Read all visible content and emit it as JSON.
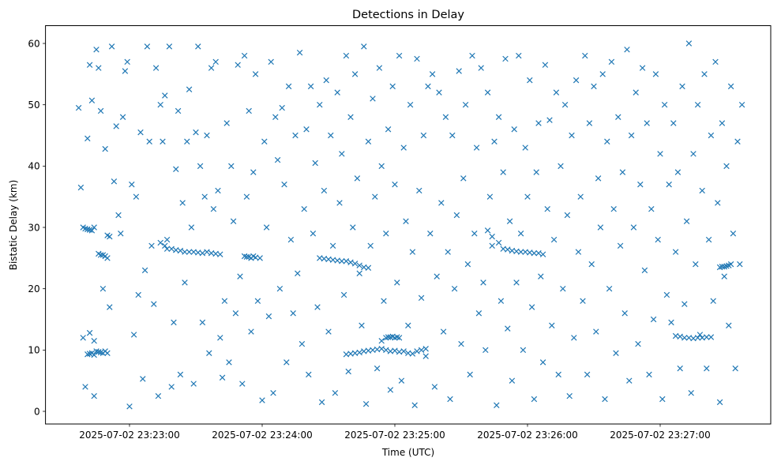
{
  "chart_data": {
    "type": "scatter",
    "title": "Detections in Delay",
    "xlabel": "Time (UTC)",
    "ylabel": "Bistatic Delay (km)",
    "x_unit": "seconds after 2025-07-02 23:22:00",
    "xlim": [
      22,
      350
    ],
    "ylim": [
      -2.06,
      62.9
    ],
    "xticks": [
      {
        "value": 60,
        "label": "2025-07-02 23:23:00"
      },
      {
        "value": 120,
        "label": "2025-07-02 23:24:00"
      },
      {
        "value": 180,
        "label": "2025-07-02 23:25:00"
      },
      {
        "value": 240,
        "label": "2025-07-02 23:26:00"
      },
      {
        "value": 300,
        "label": "2025-07-02 23:27:00"
      }
    ],
    "yticks": [
      {
        "value": 0,
        "label": "0"
      },
      {
        "value": 10,
        "label": "10"
      },
      {
        "value": 20,
        "label": "20"
      },
      {
        "value": 30,
        "label": "30"
      },
      {
        "value": 40,
        "label": "40"
      },
      {
        "value": 50,
        "label": "50"
      },
      {
        "value": 60,
        "label": "60"
      }
    ],
    "grid": false,
    "marker": "x",
    "color": "#1f77b4",
    "points": [
      [
        37,
        49.5
      ],
      [
        38,
        36.5
      ],
      [
        39,
        12
      ],
      [
        40,
        4
      ],
      [
        41,
        44.5
      ],
      [
        42,
        56.5
      ],
      [
        43,
        50.7
      ],
      [
        44,
        2.5
      ],
      [
        45,
        59
      ],
      [
        46,
        56
      ],
      [
        47,
        49
      ],
      [
        48,
        20
      ],
      [
        49,
        42.8
      ],
      [
        50,
        9.5
      ],
      [
        51,
        17
      ],
      [
        52,
        59.5
      ],
      [
        53,
        37.5
      ],
      [
        54,
        46.5
      ],
      [
        55,
        32
      ],
      [
        56,
        29
      ],
      [
        57,
        48
      ],
      [
        58,
        55.5
      ],
      [
        59,
        57
      ],
      [
        60,
        0.8
      ],
      [
        61,
        37
      ],
      [
        62,
        12.5
      ],
      [
        63,
        35
      ],
      [
        64,
        19
      ],
      [
        65,
        45.5
      ],
      [
        66,
        5.3
      ],
      [
        67,
        23
      ],
      [
        68,
        59.5
      ],
      [
        69,
        44
      ],
      [
        70,
        27
      ],
      [
        71,
        17.5
      ],
      [
        72,
        56
      ],
      [
        73,
        2.5
      ],
      [
        74,
        50
      ],
      [
        75,
        44
      ],
      [
        76,
        51.5
      ],
      [
        77,
        28
      ],
      [
        78,
        59.5
      ],
      [
        79,
        4
      ],
      [
        80,
        14.5
      ],
      [
        81,
        39.5
      ],
      [
        82,
        49
      ],
      [
        83,
        6
      ],
      [
        84,
        34
      ],
      [
        85,
        21
      ],
      [
        86,
        44
      ],
      [
        87,
        52.5
      ],
      [
        88,
        30
      ],
      [
        89,
        4.5
      ],
      [
        90,
        45.5
      ],
      [
        91,
        59.5
      ],
      [
        92,
        40
      ],
      [
        93,
        14.5
      ],
      [
        94,
        35
      ],
      [
        95,
        45
      ],
      [
        96,
        9.5
      ],
      [
        97,
        56
      ],
      [
        98,
        33
      ],
      [
        99,
        57
      ],
      [
        100,
        36
      ],
      [
        101,
        12
      ],
      [
        102,
        5.5
      ],
      [
        103,
        18
      ],
      [
        104,
        47
      ],
      [
        105,
        8
      ],
      [
        106,
        40
      ],
      [
        107,
        31
      ],
      [
        108,
        16
      ],
      [
        109,
        56.5
      ],
      [
        110,
        22
      ],
      [
        111,
        4.5
      ],
      [
        112,
        58
      ],
      [
        113,
        35
      ],
      [
        114,
        49
      ],
      [
        115,
        13
      ],
      [
        116,
        39
      ],
      [
        117,
        55
      ],
      [
        118,
        18
      ],
      [
        119,
        25
      ],
      [
        120,
        1.8
      ],
      [
        121,
        44
      ],
      [
        122,
        30
      ],
      [
        123,
        15.5
      ],
      [
        124,
        57
      ],
      [
        125,
        3
      ],
      [
        126,
        48
      ],
      [
        127,
        41
      ],
      [
        128,
        20
      ],
      [
        129,
        49.5
      ],
      [
        130,
        37
      ],
      [
        131,
        8
      ],
      [
        132,
        53
      ],
      [
        133,
        28
      ],
      [
        134,
        16
      ],
      [
        135,
        45
      ],
      [
        136,
        22.5
      ],
      [
        137,
        58.5
      ],
      [
        138,
        11
      ],
      [
        139,
        33
      ],
      [
        140,
        46
      ],
      [
        141,
        6
      ],
      [
        142,
        53
      ],
      [
        143,
        29
      ],
      [
        144,
        40.5
      ],
      [
        145,
        17
      ],
      [
        146,
        50
      ],
      [
        147,
        1.5
      ],
      [
        148,
        36
      ],
      [
        149,
        54
      ],
      [
        150,
        13
      ],
      [
        151,
        45
      ],
      [
        152,
        27
      ],
      [
        153,
        3
      ],
      [
        154,
        52
      ],
      [
        155,
        34
      ],
      [
        156,
        42
      ],
      [
        157,
        19
      ],
      [
        158,
        58
      ],
      [
        159,
        6.5
      ],
      [
        160,
        48
      ],
      [
        161,
        30
      ],
      [
        162,
        55
      ],
      [
        163,
        38
      ],
      [
        164,
        22.5
      ],
      [
        165,
        14
      ],
      [
        166,
        59.5
      ],
      [
        167,
        1.2
      ],
      [
        168,
        44
      ],
      [
        169,
        27
      ],
      [
        170,
        51
      ],
      [
        171,
        35
      ],
      [
        172,
        7
      ],
      [
        173,
        56
      ],
      [
        174,
        40
      ],
      [
        175,
        18
      ],
      [
        176,
        29
      ],
      [
        177,
        46
      ],
      [
        178,
        3.5
      ],
      [
        179,
        53
      ],
      [
        180,
        37
      ],
      [
        181,
        21
      ],
      [
        182,
        58
      ],
      [
        183,
        5
      ],
      [
        184,
        43
      ],
      [
        185,
        31
      ],
      [
        186,
        14
      ],
      [
        187,
        50
      ],
      [
        188,
        26
      ],
      [
        189,
        1
      ],
      [
        190,
        57.5
      ],
      [
        191,
        36
      ],
      [
        192,
        18.5
      ],
      [
        193,
        45
      ],
      [
        194,
        9
      ],
      [
        195,
        53
      ],
      [
        196,
        29
      ],
      [
        197,
        55
      ],
      [
        198,
        4
      ],
      [
        199,
        22
      ],
      [
        200,
        52
      ],
      [
        201,
        34
      ],
      [
        202,
        13
      ],
      [
        203,
        48
      ],
      [
        204,
        26
      ],
      [
        205,
        2
      ],
      [
        206,
        45
      ],
      [
        207,
        20
      ],
      [
        208,
        32
      ],
      [
        209,
        55.5
      ],
      [
        210,
        11
      ],
      [
        211,
        38
      ],
      [
        212,
        50
      ],
      [
        213,
        24
      ],
      [
        214,
        6
      ],
      [
        215,
        58
      ],
      [
        216,
        29
      ],
      [
        217,
        43
      ],
      [
        218,
        16
      ],
      [
        219,
        56
      ],
      [
        220,
        21
      ],
      [
        221,
        10
      ],
      [
        222,
        52
      ],
      [
        223,
        35
      ],
      [
        224,
        27
      ],
      [
        225,
        44
      ],
      [
        226,
        1
      ],
      [
        227,
        48
      ],
      [
        228,
        18
      ],
      [
        229,
        39
      ],
      [
        230,
        57.5
      ],
      [
        231,
        13.5
      ],
      [
        232,
        31
      ],
      [
        233,
        5
      ],
      [
        234,
        46
      ],
      [
        235,
        21
      ],
      [
        236,
        58
      ],
      [
        237,
        29
      ],
      [
        238,
        10
      ],
      [
        239,
        43
      ],
      [
        240,
        35
      ],
      [
        241,
        54
      ],
      [
        242,
        17
      ],
      [
        243,
        2
      ],
      [
        244,
        39
      ],
      [
        245,
        47
      ],
      [
        246,
        22
      ],
      [
        247,
        8
      ],
      [
        248,
        56.5
      ],
      [
        249,
        33
      ],
      [
        250,
        47.5
      ],
      [
        251,
        14
      ],
      [
        252,
        28
      ],
      [
        253,
        52
      ],
      [
        254,
        6
      ],
      [
        255,
        40
      ],
      [
        256,
        20
      ],
      [
        257,
        50
      ],
      [
        258,
        32
      ],
      [
        259,
        2.5
      ],
      [
        260,
        45
      ],
      [
        261,
        12
      ],
      [
        262,
        54
      ],
      [
        263,
        26
      ],
      [
        264,
        35
      ],
      [
        265,
        18
      ],
      [
        266,
        58
      ],
      [
        267,
        6
      ],
      [
        268,
        47
      ],
      [
        269,
        24
      ],
      [
        270,
        53
      ],
      [
        271,
        13
      ],
      [
        272,
        38
      ],
      [
        273,
        30
      ],
      [
        274,
        55
      ],
      [
        275,
        2
      ],
      [
        276,
        44
      ],
      [
        277,
        20
      ],
      [
        278,
        57
      ],
      [
        279,
        33
      ],
      [
        280,
        9.5
      ],
      [
        281,
        48
      ],
      [
        282,
        27
      ],
      [
        283,
        39
      ],
      [
        284,
        16
      ],
      [
        285,
        59
      ],
      [
        286,
        5
      ],
      [
        287,
        45
      ],
      [
        288,
        30
      ],
      [
        289,
        52
      ],
      [
        290,
        11
      ],
      [
        291,
        37
      ],
      [
        292,
        56
      ],
      [
        293,
        23
      ],
      [
        294,
        47
      ],
      [
        295,
        6
      ],
      [
        296,
        33
      ],
      [
        297,
        15
      ],
      [
        298,
        55
      ],
      [
        299,
        28
      ],
      [
        300,
        42
      ],
      [
        301,
        2
      ],
      [
        302,
        50
      ],
      [
        303,
        19
      ],
      [
        304,
        37
      ],
      [
        305,
        14.5
      ],
      [
        306,
        47
      ],
      [
        307,
        26
      ],
      [
        308,
        39
      ],
      [
        309,
        7
      ],
      [
        310,
        53
      ],
      [
        311,
        17.5
      ],
      [
        312,
        31
      ],
      [
        313,
        60
      ],
      [
        314,
        3
      ],
      [
        315,
        42
      ],
      [
        316,
        24
      ],
      [
        317,
        50
      ],
      [
        318,
        12.5
      ],
      [
        319,
        36
      ],
      [
        320,
        55
      ],
      [
        321,
        7
      ],
      [
        322,
        28
      ],
      [
        323,
        45
      ],
      [
        324,
        18
      ],
      [
        325,
        57
      ],
      [
        326,
        34
      ],
      [
        327,
        1.5
      ],
      [
        328,
        47
      ],
      [
        329,
        22
      ],
      [
        330,
        40
      ],
      [
        331,
        14
      ],
      [
        332,
        53
      ],
      [
        333,
        29
      ],
      [
        334,
        7
      ],
      [
        335,
        44
      ],
      [
        336,
        24
      ],
      [
        337,
        50
      ],
      [
        39,
        30
      ],
      [
        40,
        29.8
      ],
      [
        41,
        29.7
      ],
      [
        42,
        29.6
      ],
      [
        43,
        29.5
      ],
      [
        44,
        30
      ],
      [
        46,
        25.7
      ],
      [
        47,
        25.5
      ],
      [
        48,
        25.5
      ],
      [
        49,
        25.3
      ],
      [
        50,
        25
      ],
      [
        41,
        9.3
      ],
      [
        42,
        9.4
      ],
      [
        43,
        9.5
      ],
      [
        44,
        9.2
      ],
      [
        45,
        9.8
      ],
      [
        46,
        9.7
      ],
      [
        47,
        9.6
      ],
      [
        48,
        9.5
      ],
      [
        49,
        9.8
      ],
      [
        44,
        11.5
      ],
      [
        42,
        12.8
      ],
      [
        50,
        28.7
      ],
      [
        51,
        28.5
      ],
      [
        79,
        26.5
      ],
      [
        81,
        26.3
      ],
      [
        83,
        26.2
      ],
      [
        85,
        26
      ],
      [
        87,
        26
      ],
      [
        89,
        26
      ],
      [
        91,
        25.9
      ],
      [
        93,
        25.8
      ],
      [
        95,
        26
      ],
      [
        97,
        25.8
      ],
      [
        99,
        25.7
      ],
      [
        101,
        25.6
      ],
      [
        74,
        27.5
      ],
      [
        76,
        27
      ],
      [
        77,
        26.5
      ],
      [
        112,
        25.3
      ],
      [
        113,
        25.2
      ],
      [
        114,
        25.2
      ],
      [
        115,
        25
      ],
      [
        116,
        25.3
      ],
      [
        117,
        25.1
      ],
      [
        146,
        25
      ],
      [
        148,
        24.9
      ],
      [
        150,
        24.8
      ],
      [
        152,
        24.7
      ],
      [
        154,
        24.6
      ],
      [
        156,
        24.5
      ],
      [
        158,
        24.5
      ],
      [
        160,
        24.3
      ],
      [
        162,
        24.1
      ],
      [
        164,
        23.8
      ],
      [
        166,
        23.5
      ],
      [
        168,
        23.4
      ],
      [
        158,
        9.3
      ],
      [
        160,
        9.4
      ],
      [
        162,
        9.5
      ],
      [
        164,
        9.6
      ],
      [
        166,
        9.8
      ],
      [
        168,
        9.9
      ],
      [
        170,
        10
      ],
      [
        172,
        10.1
      ],
      [
        174,
        10.2
      ],
      [
        176,
        10
      ],
      [
        178,
        9.8
      ],
      [
        180,
        9.9
      ],
      [
        182,
        9.7
      ],
      [
        184,
        9.8
      ],
      [
        186,
        9.5
      ],
      [
        188,
        9.4
      ],
      [
        190,
        9.8
      ],
      [
        192,
        10
      ],
      [
        194,
        10.2
      ],
      [
        176,
        12
      ],
      [
        177,
        12.1
      ],
      [
        178,
        12.1
      ],
      [
        179,
        12.2
      ],
      [
        180,
        12
      ],
      [
        181,
        12.1
      ],
      [
        182,
        12
      ],
      [
        174,
        11.5
      ],
      [
        229,
        26.5
      ],
      [
        231,
        26.4
      ],
      [
        233,
        26.2
      ],
      [
        235,
        26.1
      ],
      [
        237,
        26
      ],
      [
        239,
        26
      ],
      [
        241,
        25.9
      ],
      [
        243,
        25.8
      ],
      [
        245,
        25.8
      ],
      [
        247,
        25.6
      ],
      [
        227,
        27.5
      ],
      [
        224,
        28.5
      ],
      [
        222,
        29.5
      ],
      [
        307,
        12.3
      ],
      [
        309,
        12.2
      ],
      [
        311,
        12
      ],
      [
        313,
        12
      ],
      [
        315,
        11.9
      ],
      [
        317,
        12
      ],
      [
        319,
        12
      ],
      [
        321,
        12.1
      ],
      [
        323,
        12.1
      ],
      [
        327,
        23.5
      ],
      [
        328,
        23.6
      ],
      [
        329,
        23.6
      ],
      [
        330,
        23.7
      ],
      [
        331,
        23.8
      ],
      [
        332,
        24
      ]
    ]
  }
}
